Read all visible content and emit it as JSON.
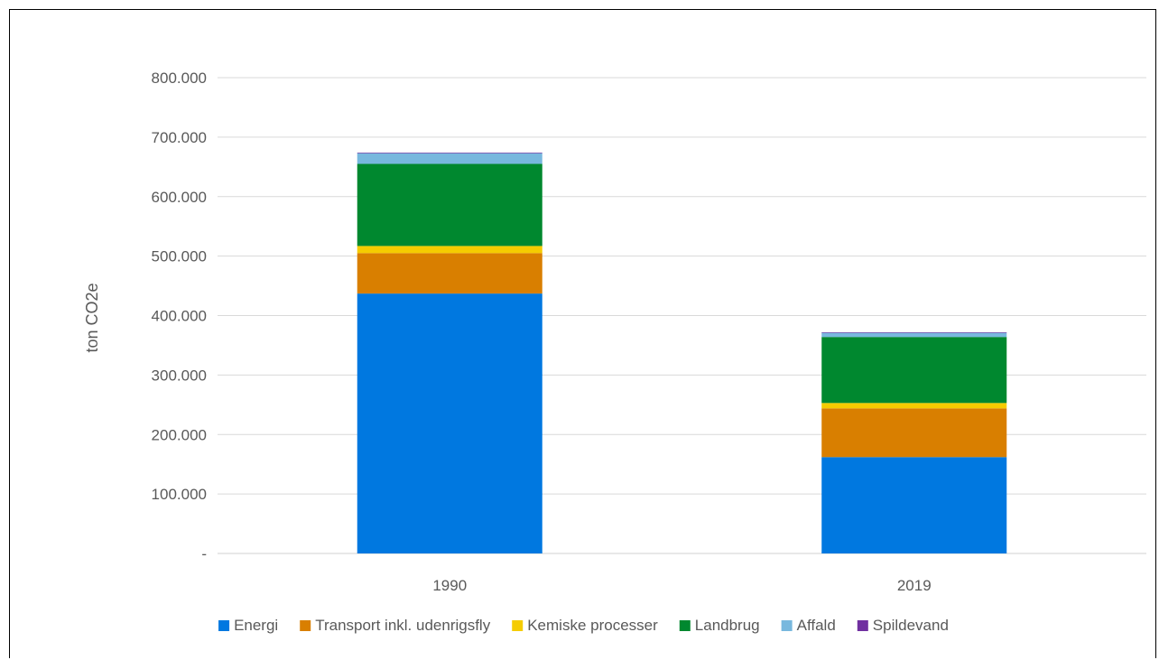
{
  "chart_data": {
    "type": "bar",
    "stacked": true,
    "title": "",
    "xlabel": "",
    "ylabel": "ton CO2e",
    "categories": [
      "1990",
      "2019"
    ],
    "ylim": [
      0,
      800000
    ],
    "yticks": [
      0,
      100000,
      200000,
      300000,
      400000,
      500000,
      600000,
      700000,
      800000
    ],
    "ytick_labels": [
      "-",
      "100.000",
      "200.000",
      "300.000",
      "400.000",
      "500.000",
      "600.000",
      "700.000",
      "800.000"
    ],
    "grid": true,
    "legend_position": "bottom",
    "series": [
      {
        "name": "Energi",
        "color": "#0078e0",
        "values": [
          437000,
          162000
        ]
      },
      {
        "name": "Transport inkl. udenrigsfly",
        "color": "#d97f00",
        "values": [
          68000,
          82000
        ]
      },
      {
        "name": "Kemiske processer",
        "color": "#f5cc00",
        "values": [
          12000,
          9000
        ]
      },
      {
        "name": "Landbrug",
        "color": "#00882f",
        "values": [
          138000,
          111000
        ]
      },
      {
        "name": "Affald",
        "color": "#78b8de",
        "values": [
          18000,
          7000
        ]
      },
      {
        "name": "Spildevand",
        "color": "#7030a0",
        "values": [
          1000,
          1000
        ]
      }
    ]
  }
}
